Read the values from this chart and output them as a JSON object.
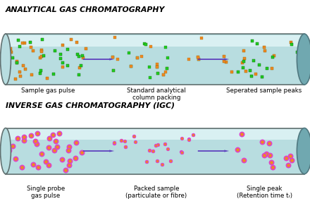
{
  "title1": "ANALYTICAL GAS CHROMATOGRAPHY",
  "title2": "INVERSE GAS CHROMATOGRAPHY (IGC)",
  "label1a": "Sample gas pulse",
  "label1b": "Standard analytical\ncolumn packing",
  "label1c": "Seperated sample peaks",
  "label2a": "Single probe\ngas pulse",
  "label2b": "Packed sample\n(particulate or fibre)",
  "label2c": "Single peak\n(Retention time tᵣ)",
  "tube_fill": "#b8dde0",
  "tube_edge": "#607070",
  "tube_highlight": "#dff4f6",
  "tube_shadow": "#88b8bc",
  "sphere_fill": "#9dccea",
  "sphere_edge": "#5088b8",
  "dot_green": "#22cc22",
  "dot_orange": "#ee8822",
  "dot_pink_border": "#dd44cc",
  "arrow_color": "#5533bb",
  "bg_color": "#ffffff",
  "title_color": "#000000",
  "label_color": "#000000",
  "cap_fill": "#70a8b0",
  "cap_edge": "#507880"
}
